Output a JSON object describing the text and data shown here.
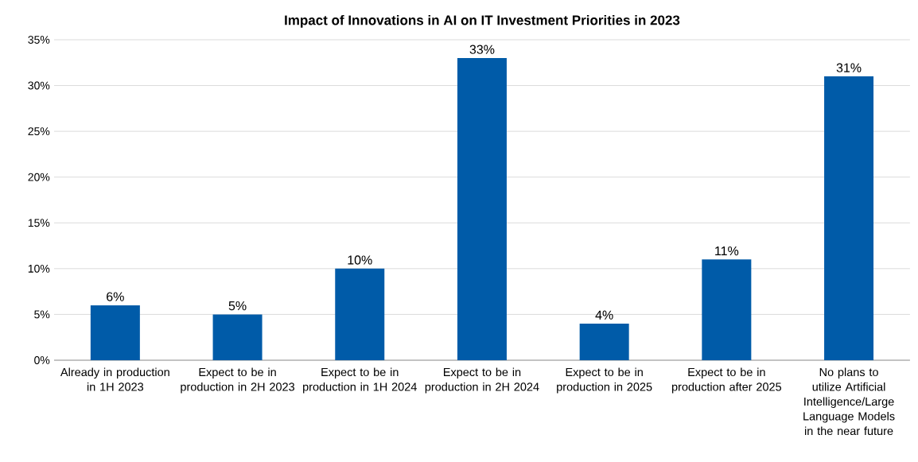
{
  "chart_data": {
    "type": "bar",
    "title": "Impact of Innovations in AI on IT Investment Priorities in 2023",
    "categories": [
      "Already in production in 1H 2023",
      "Expect to be in production in 2H 2023",
      "Expect to be in production in 1H 2024",
      "Expect to be in production in 2H 2024",
      "Expect to be in production in 2025",
      "Expect to be in production after 2025",
      "No plans to utilize Artificial Intelligence/Large Language Models in the near future"
    ],
    "values": [
      6,
      5,
      10,
      33,
      4,
      11,
      31
    ],
    "value_labels": [
      "6%",
      "5%",
      "10%",
      "33%",
      "4%",
      "11%",
      "31%"
    ],
    "color": "#005ba8",
    "ylim": [
      0,
      35
    ],
    "yticks": [
      {
        "value": 0,
        "label": "0%"
      },
      {
        "value": 5,
        "label": "5%"
      },
      {
        "value": 10,
        "label": "10%"
      },
      {
        "value": 15,
        "label": "15%"
      },
      {
        "value": 20,
        "label": "20%"
      },
      {
        "value": 25,
        "label": "25%"
      },
      {
        "value": 30,
        "label": "30%"
      },
      {
        "value": 35,
        "label": "35%"
      }
    ],
    "grid": "y"
  }
}
